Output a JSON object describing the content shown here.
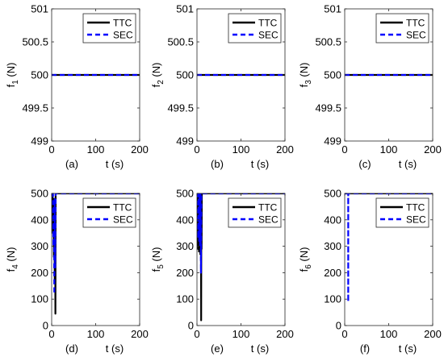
{
  "chart_data": [
    {
      "type": "line",
      "panel_label": "(a)",
      "ylabel_main": "f",
      "ylabel_sub": "1",
      "ylabel_unit": " (N)",
      "xlabel": "t (s)",
      "xlim": [
        0,
        200
      ],
      "ylim": [
        499,
        501
      ],
      "xticks": [
        0,
        100,
        200
      ],
      "yticks": [
        499,
        499.5,
        500,
        500.5,
        501
      ],
      "ytick_labels": [
        "499",
        "499.5",
        "500",
        "500.5",
        "501"
      ],
      "legend_position": "top-right",
      "series": [
        {
          "name": "TTC",
          "style": "solid",
          "color": "#000000",
          "x": [
            0,
            200
          ],
          "y": [
            500,
            500
          ]
        },
        {
          "name": "SEC",
          "style": "dashed",
          "color": "#0000ff",
          "x": [
            0,
            200
          ],
          "y": [
            500,
            500
          ]
        }
      ]
    },
    {
      "type": "line",
      "panel_label": "(b)",
      "ylabel_main": "f",
      "ylabel_sub": "2",
      "ylabel_unit": " (N)",
      "xlabel": "t (s)",
      "xlim": [
        0,
        200
      ],
      "ylim": [
        499,
        501
      ],
      "xticks": [
        0,
        100,
        200
      ],
      "yticks": [
        499,
        499.5,
        500,
        500.5,
        501
      ],
      "ytick_labels": [
        "499",
        "499.5",
        "500",
        "500.5",
        "501"
      ],
      "legend_position": "top-right",
      "series": [
        {
          "name": "TTC",
          "style": "solid",
          "color": "#000000",
          "x": [
            0,
            200
          ],
          "y": [
            500,
            500
          ]
        },
        {
          "name": "SEC",
          "style": "dashed",
          "color": "#0000ff",
          "x": [
            0,
            200
          ],
          "y": [
            500,
            500
          ]
        }
      ]
    },
    {
      "type": "line",
      "panel_label": "(c)",
      "ylabel_main": "f",
      "ylabel_sub": "3",
      "ylabel_unit": " (N)",
      "xlabel": "t (s)",
      "xlim": [
        0,
        200
      ],
      "ylim": [
        499,
        501
      ],
      "xticks": [
        0,
        100,
        200
      ],
      "yticks": [
        499,
        499.5,
        500,
        500.5,
        501
      ],
      "ytick_labels": [
        "499",
        "499.5",
        "500",
        "500.5",
        "501"
      ],
      "legend_position": "top-right",
      "series": [
        {
          "name": "TTC",
          "style": "solid",
          "color": "#000000",
          "x": [
            0,
            200
          ],
          "y": [
            500,
            500
          ]
        },
        {
          "name": "SEC",
          "style": "dashed",
          "color": "#0000ff",
          "x": [
            0,
            200
          ],
          "y": [
            500,
            500
          ]
        }
      ]
    },
    {
      "type": "line",
      "panel_label": "(d)",
      "ylabel_main": "f",
      "ylabel_sub": "4",
      "ylabel_unit": " (N)",
      "xlabel": "t (s)",
      "xlim": [
        0,
        200
      ],
      "ylim": [
        0,
        500
      ],
      "xticks": [
        0,
        100,
        200
      ],
      "yticks": [
        0,
        100,
        200,
        300,
        400,
        500
      ],
      "ytick_labels": [
        "0",
        "100",
        "200",
        "300",
        "400",
        "500"
      ],
      "legend_position": "top-right",
      "series": [
        {
          "name": "TTC",
          "style": "solid",
          "color": "#000000",
          "x": [
            0,
            2,
            3,
            4,
            5,
            6,
            7,
            8,
            8.5,
            9,
            10,
            200
          ],
          "y": [
            500,
            500,
            350,
            480,
            260,
            460,
            160,
            420,
            45,
            500,
            500,
            500
          ]
        },
        {
          "name": "SEC",
          "style": "dashed",
          "color": "#0000ff",
          "x": [
            0,
            3,
            4,
            5,
            6,
            7,
            8,
            9,
            200
          ],
          "y": [
            500,
            500,
            300,
            470,
            120,
            480,
            220,
            500,
            500
          ]
        }
      ]
    },
    {
      "type": "line",
      "panel_label": "(e)",
      "ylabel_main": "f",
      "ylabel_sub": "5",
      "ylabel_unit": " (N)",
      "xlabel": "t (s)",
      "xlim": [
        0,
        200
      ],
      "ylim": [
        0,
        500
      ],
      "xticks": [
        0,
        100,
        200
      ],
      "yticks": [
        0,
        100,
        200,
        300,
        400,
        500
      ],
      "ytick_labels": [
        "0",
        "100",
        "200",
        "300",
        "400",
        "500"
      ],
      "legend_position": "top-right",
      "series": [
        {
          "name": "TTC",
          "style": "solid",
          "color": "#000000",
          "x": [
            0,
            1,
            1.5,
            2,
            2.5,
            3,
            3.5,
            4,
            4.5,
            5,
            5.5,
            6,
            6.5,
            7,
            7.5,
            8,
            8.5,
            9,
            9.5,
            10,
            10.5,
            11,
            12,
            200
          ],
          "y": [
            500,
            500,
            300,
            500,
            290,
            500,
            310,
            500,
            280,
            500,
            300,
            500,
            290,
            500,
            270,
            500,
            310,
            500,
            20,
            500,
            290,
            500,
            500,
            500
          ]
        },
        {
          "name": "SEC",
          "style": "dashed",
          "color": "#0000ff",
          "x": [
            0,
            2,
            3,
            4,
            5,
            6,
            7,
            8,
            9,
            10,
            11,
            200
          ],
          "y": [
            500,
            500,
            330,
            500,
            320,
            500,
            300,
            500,
            200,
            500,
            500,
            500
          ]
        }
      ]
    },
    {
      "type": "line",
      "panel_label": "(f)",
      "ylabel_main": "f",
      "ylabel_sub": "6",
      "ylabel_unit": " (N)",
      "xlabel": "t (s)",
      "xlim": [
        0,
        200
      ],
      "ylim": [
        0,
        500
      ],
      "xticks": [
        0,
        100,
        200
      ],
      "yticks": [
        0,
        100,
        200,
        300,
        400,
        500
      ],
      "ytick_labels": [
        "0",
        "100",
        "200",
        "300",
        "400",
        "500"
      ],
      "legend_position": "top-right",
      "series": [
        {
          "name": "TTC",
          "style": "solid",
          "color": "#000000",
          "x": [
            0,
            200
          ],
          "y": [
            500,
            500
          ]
        },
        {
          "name": "SEC",
          "style": "dashed",
          "color": "#0000ff",
          "x": [
            0,
            8,
            8,
            8,
            200
          ],
          "y": [
            500,
            500,
            90,
            500,
            500
          ]
        }
      ]
    }
  ]
}
